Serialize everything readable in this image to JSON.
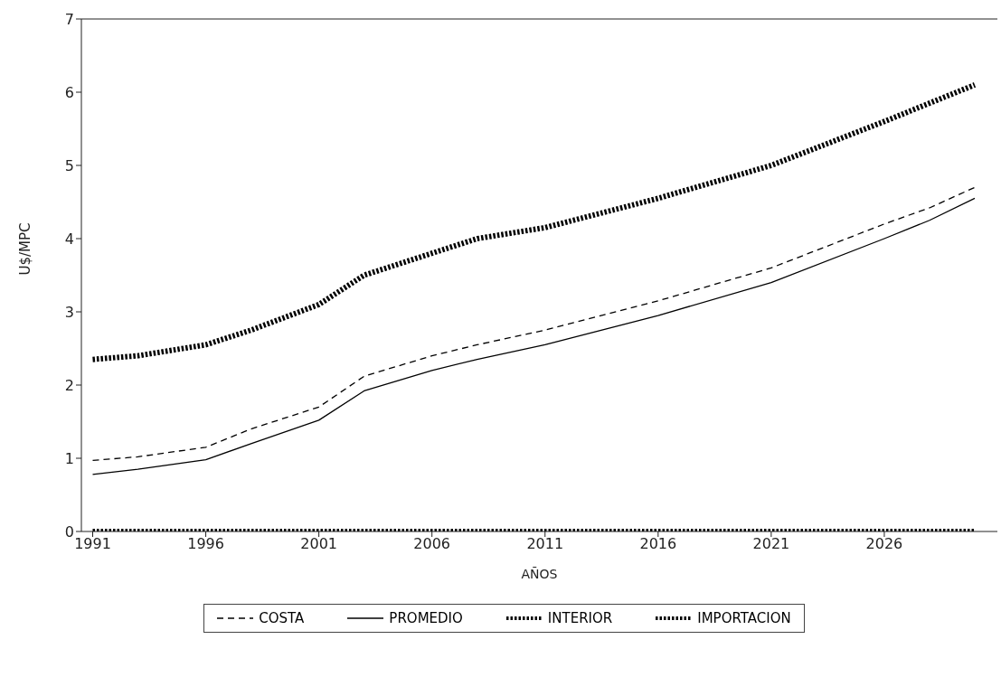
{
  "chart_data": {
    "type": "line",
    "xlabel": "AÑOS",
    "ylabel": "U$/MPC",
    "x": [
      1991,
      1993,
      1996,
      1998,
      2001,
      2003,
      2006,
      2008,
      2011,
      2016,
      2021,
      2026,
      2028,
      2030
    ],
    "series": [
      {
        "name": "COSTA",
        "color": "#000000",
        "line_style": "dashed",
        "values": [
          0.97,
          1.02,
          1.15,
          1.4,
          1.7,
          2.12,
          2.4,
          2.55,
          2.75,
          3.15,
          3.6,
          4.2,
          4.42,
          4.7
        ]
      },
      {
        "name": "PROMEDIO",
        "color": "#000000",
        "line_style": "solid",
        "values": [
          0.78,
          0.85,
          0.98,
          1.2,
          1.52,
          1.92,
          2.2,
          2.35,
          2.55,
          2.95,
          3.4,
          4.0,
          4.25,
          4.55
        ]
      },
      {
        "name": "INTERIOR",
        "color": "#000000",
        "line_style": "dotted",
        "values": [
          2.35,
          2.4,
          2.55,
          2.75,
          3.1,
          3.5,
          3.8,
          4.0,
          4.15,
          4.55,
          5.0,
          5.6,
          5.85,
          6.1
        ]
      },
      {
        "name": "IMPORTACION",
        "color": "#000000",
        "line_style": "dotted",
        "values": [
          0,
          0,
          0,
          0,
          0,
          0,
          0,
          0,
          0,
          0,
          0,
          0,
          0,
          0
        ]
      }
    ],
    "xlim": [
      1990.5,
      2031
    ],
    "xticks": [
      1991,
      1996,
      2001,
      2006,
      2011,
      2016,
      2021,
      2026
    ],
    "ylim": [
      0,
      7
    ],
    "yticks": [
      0,
      1,
      2,
      3,
      4,
      5,
      6,
      7
    ],
    "grid": false,
    "legend": "bottom",
    "marker": "none"
  }
}
